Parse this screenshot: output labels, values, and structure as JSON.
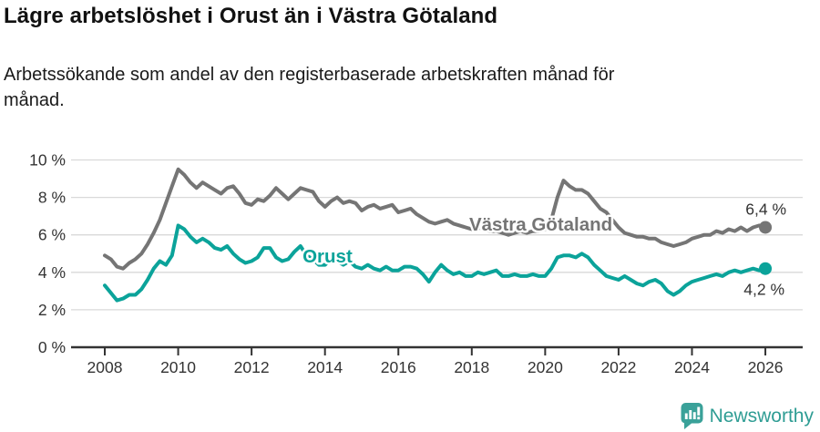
{
  "header": {
    "title": "Lägre arbetslöshet i Orust än i Västra Götaland",
    "subtitle_line1": "Arbetssökande som andel av den registerbaserade arbetskraften månad för",
    "subtitle_line2": "månad."
  },
  "footer": {
    "brand": "Newsworthy",
    "logo_icon": "bar-chart-speech-bubble-icon",
    "brand_color": "#2f9d94"
  },
  "colors": {
    "background": "#ffffff",
    "grid": "#d9d9d9",
    "axis": "#333333",
    "tick_text": "#333333",
    "value_label_text": "#333333",
    "series_vastra_gotaland": "#757575",
    "series_orust": "#0ba39a"
  },
  "chart_data": {
    "type": "line",
    "title": "Lägre arbetslöshet i Orust än i Västra Götaland",
    "subtitle": "Arbetssökande som andel av den registerbaserade arbetskraften månad för månad.",
    "xlabel": "",
    "ylabel": "",
    "grid": "horizontal",
    "legend_position": "inline-labels",
    "ylim": [
      0,
      10.5
    ],
    "xlim": [
      2007.1,
      2027
    ],
    "y_ticks": [
      {
        "value": 0,
        "label": "0 %"
      },
      {
        "value": 2,
        "label": "2 %"
      },
      {
        "value": 4,
        "label": "4 %"
      },
      {
        "value": 6,
        "label": "6 %"
      },
      {
        "value": 8,
        "label": "8 %"
      },
      {
        "value": 10,
        "label": "10 %"
      }
    ],
    "x_ticks": [
      {
        "value": 2008,
        "label": "2008"
      },
      {
        "value": 2010,
        "label": "2010"
      },
      {
        "value": 2012,
        "label": "2012"
      },
      {
        "value": 2014,
        "label": "2014"
      },
      {
        "value": 2016,
        "label": "2016"
      },
      {
        "value": 2018,
        "label": "2018"
      },
      {
        "value": 2020,
        "label": "2020"
      },
      {
        "value": 2022,
        "label": "2022"
      },
      {
        "value": 2024,
        "label": "2024"
      },
      {
        "value": 2026,
        "label": "2026"
      }
    ],
    "x_start": 2008.0,
    "x_step_years": 0.1666667,
    "series": [
      {
        "name": "Västra Götaland",
        "color": "#757575",
        "end_label": "6,4 %",
        "end_value": 6.4,
        "inline_label": {
          "year": 2017.93,
          "value": 6.23
        },
        "end_label_offset": {
          "dx": 23,
          "dy": -14
        },
        "values": [
          4.9,
          4.7,
          4.3,
          4.2,
          4.5,
          4.7,
          5.0,
          5.5,
          6.1,
          6.8,
          7.7,
          8.6,
          9.5,
          9.2,
          8.8,
          8.5,
          8.8,
          8.6,
          8.4,
          8.2,
          8.5,
          8.6,
          8.2,
          7.7,
          7.6,
          7.9,
          7.8,
          8.1,
          8.5,
          8.2,
          7.9,
          8.2,
          8.5,
          8.4,
          8.3,
          7.8,
          7.5,
          7.8,
          8.0,
          7.7,
          7.8,
          7.7,
          7.3,
          7.5,
          7.6,
          7.4,
          7.5,
          7.6,
          7.2,
          7.3,
          7.4,
          7.1,
          6.9,
          6.7,
          6.6,
          6.7,
          6.8,
          6.6,
          6.5,
          6.4,
          6.3,
          6.4,
          6.3,
          6.2,
          6.2,
          6.1,
          6.0,
          6.1,
          6.2,
          6.1,
          6.2,
          6.2,
          6.3,
          6.8,
          8.0,
          8.9,
          8.6,
          8.4,
          8.4,
          8.2,
          7.8,
          7.4,
          7.2,
          6.8,
          6.4,
          6.1,
          6.0,
          5.9,
          5.9,
          5.8,
          5.8,
          5.6,
          5.5,
          5.4,
          5.5,
          5.6,
          5.8,
          5.9,
          6.0,
          6.0,
          6.2,
          6.1,
          6.3,
          6.2,
          6.4,
          6.2,
          6.4,
          6.5,
          6.4
        ]
      },
      {
        "name": "Orust",
        "color": "#0ba39a",
        "end_label": "4,2 %",
        "end_value": 4.2,
        "inline_label": {
          "year": 2013.39,
          "value": 4.53
        },
        "end_label_offset": {
          "dx": 21,
          "dy": 29
        },
        "values": [
          3.3,
          2.9,
          2.5,
          2.6,
          2.8,
          2.8,
          3.1,
          3.6,
          4.2,
          4.6,
          4.4,
          4.9,
          6.5,
          6.3,
          5.9,
          5.6,
          5.8,
          5.6,
          5.3,
          5.2,
          5.4,
          5.0,
          4.7,
          4.5,
          4.6,
          4.8,
          5.3,
          5.3,
          4.8,
          4.6,
          4.7,
          5.1,
          5.4,
          4.9,
          4.7,
          4.4,
          4.4,
          4.7,
          4.6,
          4.4,
          4.6,
          4.3,
          4.2,
          4.4,
          4.2,
          4.1,
          4.3,
          4.1,
          4.1,
          4.3,
          4.3,
          4.2,
          3.9,
          3.5,
          4.0,
          4.4,
          4.1,
          3.9,
          4.0,
          3.8,
          3.8,
          4.0,
          3.9,
          4.0,
          4.1,
          3.8,
          3.8,
          3.9,
          3.8,
          3.8,
          3.9,
          3.8,
          3.8,
          4.2,
          4.8,
          4.9,
          4.9,
          4.8,
          5.0,
          4.8,
          4.4,
          4.1,
          3.8,
          3.7,
          3.6,
          3.8,
          3.6,
          3.4,
          3.3,
          3.5,
          3.6,
          3.4,
          3.0,
          2.8,
          3.0,
          3.3,
          3.5,
          3.6,
          3.7,
          3.8,
          3.9,
          3.8,
          4.0,
          4.1,
          4.0,
          4.1,
          4.2,
          4.1,
          4.2
        ]
      }
    ]
  }
}
